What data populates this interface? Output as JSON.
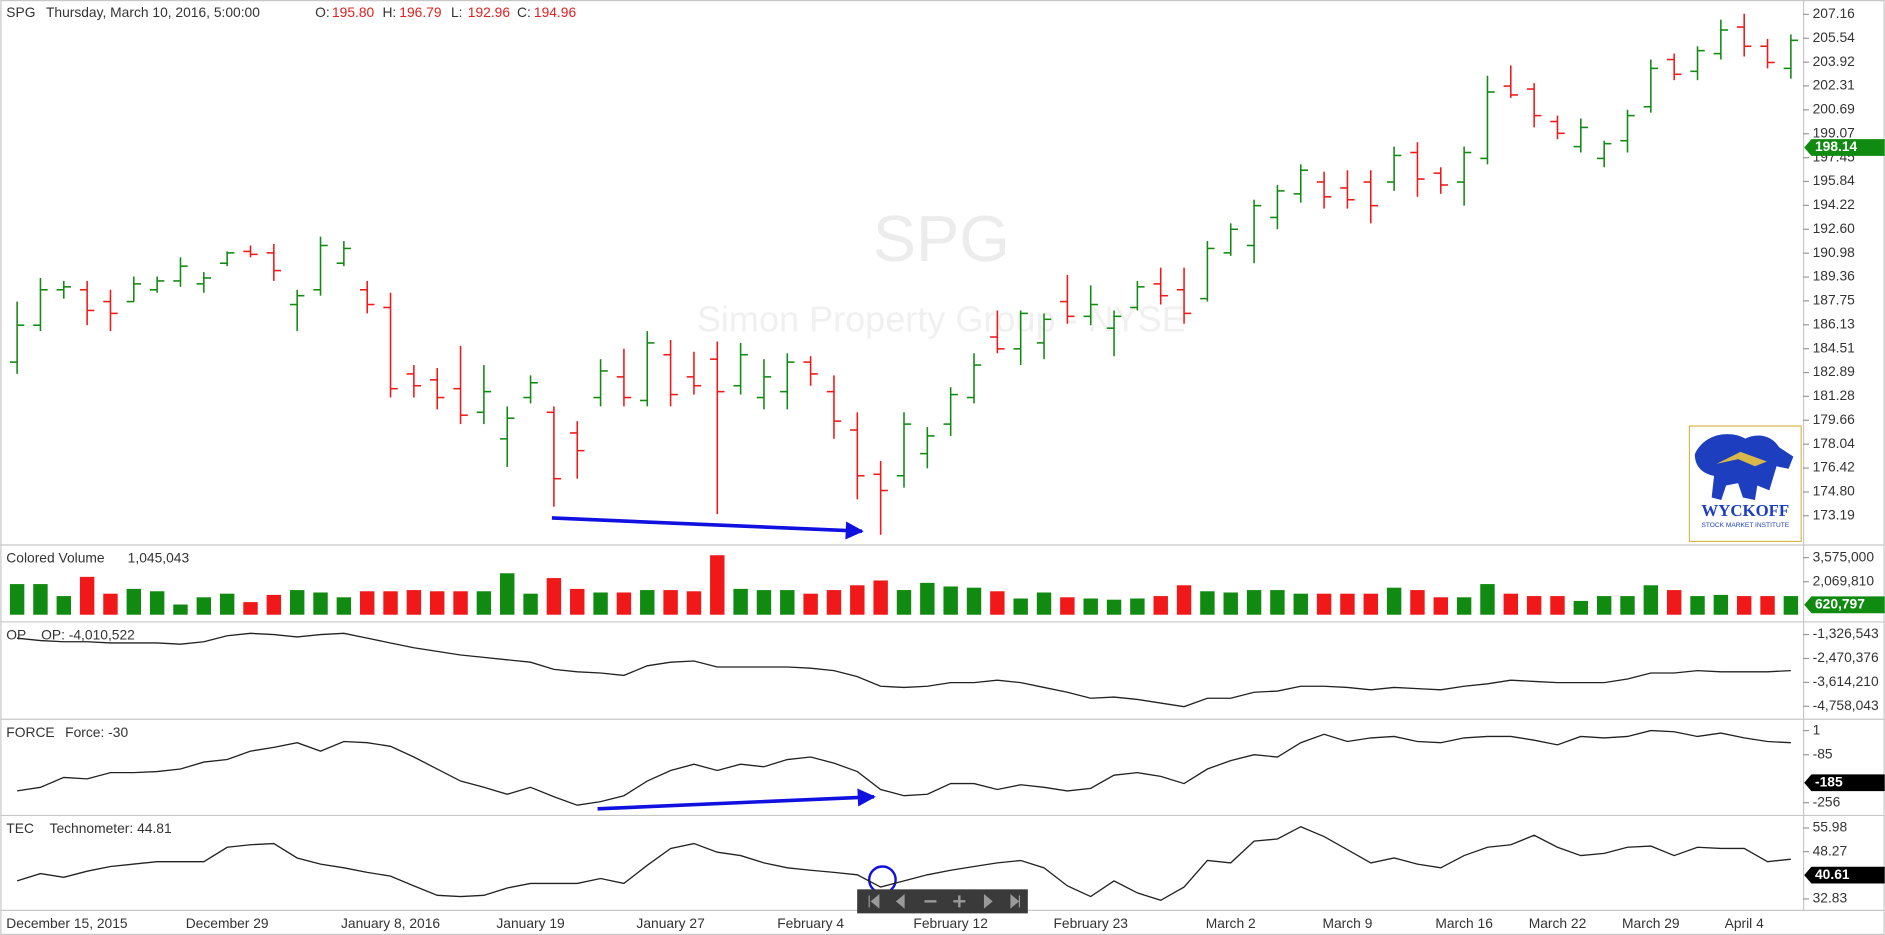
{
  "chart_data": [
    {
      "type": "ohlc",
      "name": "SPG",
      "subtitle": "Thursday, March 10, 2016, 5:00:00",
      "readout": [
        {
          "label": "O:",
          "text": "195.80"
        },
        {
          "label": "H:",
          "text": "196.79"
        },
        {
          "label": "L:",
          "text": "192.96"
        },
        {
          "label": "C:",
          "text": "194.96"
        }
      ],
      "watermark": "SPG",
      "watermark_sub": "Simon Property Group - NYSE",
      "up_color": "#118a11",
      "down_color": "#f01818",
      "open": [
        183.6,
        186.1,
        188.5,
        188.5,
        187.7,
        187.7,
        188.5,
        189.1,
        188.9,
        190.3,
        191.1,
        191.0,
        187.5,
        188.5,
        190.3,
        188.5,
        187.3,
        182.8,
        182.4,
        181.8,
        180.2,
        178.4,
        181.2,
        180.2,
        178.8,
        181.2,
        182.6,
        181.0,
        184.1,
        182.6,
        183.8,
        182.0,
        181.2,
        181.6,
        183.6,
        181.6,
        179.0,
        176.0,
        175.9,
        177.4,
        179.4,
        181.2,
        185.3,
        184.5,
        184.9,
        187.7,
        186.7,
        185.9,
        187.3,
        188.9,
        188.5,
        187.9,
        191.0,
        191.5,
        193.4,
        195.0,
        195.8,
        195.4,
        195.8,
        195.8,
        197.8,
        196.4,
        195.8,
        197.4,
        202.3,
        202.1,
        199.9,
        198.2,
        197.4,
        198.6,
        200.9,
        204.1,
        203.3,
        204.5,
        206.3,
        205.0,
        203.5
      ],
      "high": [
        187.7,
        189.3,
        189.1,
        189.1,
        188.5,
        189.4,
        189.4,
        190.7,
        189.7,
        191.1,
        191.5,
        191.6,
        188.5,
        192.1,
        191.8,
        189.1,
        188.3,
        183.4,
        183.2,
        184.7,
        183.4,
        180.6,
        182.7,
        180.6,
        179.6,
        183.8,
        184.5,
        185.7,
        185.1,
        184.3,
        185.0,
        184.9,
        183.8,
        184.2,
        184.0,
        182.7,
        180.2,
        176.9,
        180.2,
        179.2,
        181.9,
        184.2,
        187.1,
        187.1,
        186.9,
        189.5,
        188.8,
        187.1,
        189.1,
        190.0,
        190.0,
        191.8,
        193.0,
        194.6,
        195.6,
        197.0,
        196.5,
        196.6,
        196.6,
        198.2,
        198.5,
        196.8,
        198.2,
        203.0,
        203.7,
        202.5,
        200.3,
        200.1,
        198.6,
        200.7,
        204.1,
        204.5,
        205.0,
        206.8,
        207.2,
        205.5,
        205.8
      ],
      "low": [
        182.8,
        185.7,
        187.9,
        186.1,
        185.7,
        187.7,
        188.3,
        188.7,
        188.3,
        190.1,
        190.7,
        189.1,
        185.7,
        188.1,
        190.1,
        186.9,
        181.2,
        181.2,
        180.4,
        179.4,
        179.4,
        176.5,
        180.8,
        173.8,
        175.7,
        180.6,
        180.6,
        180.6,
        180.6,
        181.4,
        173.3,
        181.4,
        180.4,
        180.4,
        182.0,
        178.4,
        174.3,
        171.9,
        175.1,
        176.4,
        178.6,
        180.8,
        184.2,
        183.4,
        183.8,
        186.2,
        186.1,
        184.0,
        187.1,
        187.5,
        186.2,
        187.7,
        190.8,
        190.3,
        192.6,
        194.4,
        194.0,
        194.0,
        193.0,
        195.2,
        194.8,
        195.0,
        194.2,
        197.0,
        201.5,
        199.5,
        198.7,
        197.8,
        196.8,
        197.8,
        200.5,
        202.7,
        202.7,
        204.1,
        204.3,
        203.5,
        202.8
      ],
      "close": [
        186.1,
        188.5,
        188.7,
        187.1,
        186.9,
        188.9,
        189.1,
        190.1,
        189.3,
        191.0,
        190.9,
        189.8,
        188.1,
        191.5,
        191.3,
        187.5,
        181.8,
        182.0,
        181.2,
        180.0,
        181.6,
        179.8,
        182.2,
        175.7,
        177.6,
        183.0,
        181.2,
        184.9,
        181.4,
        182.0,
        181.6,
        184.1,
        182.6,
        183.6,
        182.8,
        179.6,
        175.9,
        174.9,
        179.4,
        178.6,
        181.4,
        183.4,
        184.5,
        186.9,
        186.5,
        186.7,
        187.5,
        186.7,
        188.7,
        188.1,
        186.9,
        191.3,
        192.6,
        194.2,
        195.2,
        196.6,
        194.8,
        194.6,
        194.2,
        197.6,
        196.0,
        195.6,
        197.8,
        201.9,
        201.7,
        200.3,
        199.1,
        199.5,
        198.4,
        200.3,
        203.5,
        203.1,
        204.7,
        206.1,
        205.0,
        203.9,
        205.4
      ],
      "ylim": [
        171.33,
        207.97
      ],
      "yticks": [
        207.16,
        205.54,
        203.92,
        202.31,
        200.69,
        199.07,
        197.45,
        195.84,
        194.22,
        {
          "value": 192.6,
          "label": "192.60"
        },
        190.98,
        189.36,
        187.75,
        186.13,
        184.51,
        182.89,
        181.28,
        179.66,
        178.04,
        176.42,
        {
          "value": 174.8,
          "label": "174.80"
        },
        173.19
      ],
      "last": 198.14,
      "last_color": "#118a11"
    },
    {
      "type": "bar",
      "name": "Colored Volume",
      "readout": "1,045,043",
      "up_color": "#118a11",
      "down_color": "#f01818",
      "values": [
        1919000,
        1919000,
        1167000,
        2371000,
        1317000,
        1618000,
        1468000,
        640000,
        1091000,
        1317000,
        790000,
        1242000,
        1543000,
        1392000,
        1091000,
        1468000,
        1468000,
        1543000,
        1468000,
        1468000,
        1468000,
        2596000,
        1317000,
        2295000,
        1618000,
        1392000,
        1392000,
        1543000,
        1543000,
        1468000,
        3725000,
        1618000,
        1543000,
        1543000,
        1317000,
        1543000,
        1844000,
        2145000,
        1543000,
        1994000,
        1769000,
        1693000,
        1468000,
        1016000,
        1392000,
        1091000,
        1016000,
        941000,
        1016000,
        1167000,
        1844000,
        1468000,
        1392000,
        1543000,
        1543000,
        1317000,
        1317000,
        1317000,
        1317000,
        1693000,
        1543000,
        1091000,
        1091000,
        1919000,
        1317000,
        1167000,
        1167000,
        865000,
        1167000,
        1167000,
        1844000,
        1543000,
        1167000,
        1242000,
        1167000,
        1167000,
        1167000
      ],
      "ylim": [
        0,
        4252000
      ],
      "yticks": [
        {
          "value": 3575000,
          "label": "3,575,000"
        },
        {
          "value": 2069810,
          "label": "2,069,810"
        }
      ],
      "last": {
        "value": 620797,
        "label": "620,797"
      },
      "last_color": "#118a11"
    },
    {
      "type": "line",
      "name": "OP",
      "readout": "OP: -4,010,522",
      "color": "#222222",
      "values": [
        -1499000,
        -1614000,
        -1671000,
        -1671000,
        -1729000,
        -1729000,
        -1729000,
        -1786000,
        -1671000,
        -1384000,
        -1269000,
        -1327000,
        -1442000,
        -1327000,
        -1269000,
        -1499000,
        -1729000,
        -1959000,
        -2131000,
        -2304000,
        -2419000,
        -2534000,
        -2649000,
        -2993000,
        -3108000,
        -3166000,
        -3281000,
        -2821000,
        -2649000,
        -2591000,
        -2878000,
        -2878000,
        -2878000,
        -2878000,
        -2936000,
        -3051000,
        -3338000,
        -3798000,
        -3856000,
        -3798000,
        -3626000,
        -3626000,
        -3511000,
        -3626000,
        -3856000,
        -4086000,
        -4373000,
        -4316000,
        -4431000,
        -4603000,
        -4775000,
        -4373000,
        -4373000,
        -4086000,
        -4028000,
        -3798000,
        -3798000,
        -3856000,
        -3971000,
        -3856000,
        -3913000,
        -3971000,
        -3798000,
        -3683000,
        -3511000,
        -3568000,
        -3626000,
        -3626000,
        -3626000,
        -3453000,
        -3166000,
        -3166000,
        -3051000,
        -3108000,
        -3108000,
        -3108000,
        -3051000
      ],
      "ylim": [
        -5292663,
        -809223
      ],
      "yticks": [
        {
          "value": -1326543,
          "label": "-1,326,543"
        },
        {
          "value": -2470376,
          "label": "-2,470,376"
        },
        {
          "value": -3614210,
          "label": "-3,614,210"
        },
        {
          "value": -4758043,
          "label": "-4,758,043"
        }
      ]
    },
    {
      "type": "line",
      "name": "FORCE",
      "readout": "Force: -30",
      "color": "#222222",
      "values": [
        -214,
        -201,
        -166,
        -171,
        -149,
        -149,
        -145,
        -136,
        -111,
        -102,
        -72,
        -59,
        -42,
        -72,
        -38,
        -42,
        -55,
        -93,
        -136,
        -179,
        -201,
        -226,
        -201,
        -235,
        -265,
        -252,
        -231,
        -179,
        -141,
        -119,
        -141,
        -119,
        -128,
        -102,
        -93,
        -115,
        -145,
        -209,
        -231,
        -226,
        -188,
        -188,
        -209,
        -192,
        -201,
        -214,
        -205,
        -158,
        -149,
        -162,
        -188,
        -136,
        -106,
        -85,
        -93,
        -42,
        -12,
        -38,
        -25,
        -20,
        -38,
        -42,
        -25,
        -20,
        -20,
        -33,
        -50,
        -20,
        -25,
        -20,
        1,
        -3,
        -20,
        -8,
        -25,
        -38,
        -42
      ],
      "ylim": [
        -295,
        35
      ],
      "yticks": [
        1,
        -85,
        -256
      ],
      "last": -185,
      "last_color": "#000000"
    },
    {
      "type": "line",
      "name": "TEC",
      "readout": "Technometer: 44.81",
      "color": "#222222",
      "values": [
        38.7,
        41.1,
        39.9,
        41.9,
        43.4,
        44.2,
        45.0,
        45.0,
        45.0,
        49.7,
        50.5,
        50.9,
        46.2,
        44.2,
        43.0,
        41.5,
        40.3,
        37.1,
        34.0,
        33.6,
        34.0,
        36.4,
        37.9,
        37.9,
        37.9,
        39.5,
        37.9,
        43.8,
        49.3,
        50.9,
        48.1,
        47.0,
        44.6,
        43.0,
        42.2,
        41.5,
        40.7,
        36.7,
        38.7,
        40.7,
        42.2,
        43.4,
        44.6,
        45.4,
        43.0,
        37.1,
        33.6,
        38.7,
        34.8,
        32.4,
        36.7,
        45.4,
        44.6,
        51.7,
        52.4,
        56.4,
        53.2,
        48.9,
        44.6,
        46.2,
        44.2,
        43.0,
        47.0,
        49.7,
        50.5,
        53.6,
        49.7,
        47.0,
        47.7,
        49.7,
        50.1,
        47.0,
        49.7,
        49.3,
        49.3,
        45.0,
        45.8
      ],
      "ylim": [
        29.3,
        59.5
      ],
      "yticks": [
        55.98,
        48.27,
        32.83
      ],
      "last": 40.61,
      "last_color": "#000000",
      "categories": [
        "December 15, 2015",
        null,
        null,
        null,
        null,
        null,
        null,
        null,
        null,
        "December 29",
        null,
        null,
        null,
        null,
        null,
        null,
        "January 8, 2016",
        null,
        null,
        null,
        null,
        null,
        "January 19",
        null,
        null,
        null,
        null,
        null,
        "January 27",
        null,
        null,
        null,
        null,
        null,
        "February 4",
        null,
        null,
        null,
        null,
        null,
        "February 12",
        null,
        null,
        null,
        null,
        null,
        "February 23",
        null,
        null,
        null,
        null,
        null,
        "March 2",
        null,
        null,
        null,
        null,
        "March 9",
        null,
        null,
        null,
        null,
        "March 16",
        null,
        null,
        null,
        "March 22",
        null,
        null,
        null,
        "March 29",
        null,
        null,
        null,
        "April 4",
        null,
        null
      ]
    }
  ],
  "logo": {
    "title": "WYCKOFF",
    "subtitle": "STOCK MARKET INSTITUTE"
  }
}
